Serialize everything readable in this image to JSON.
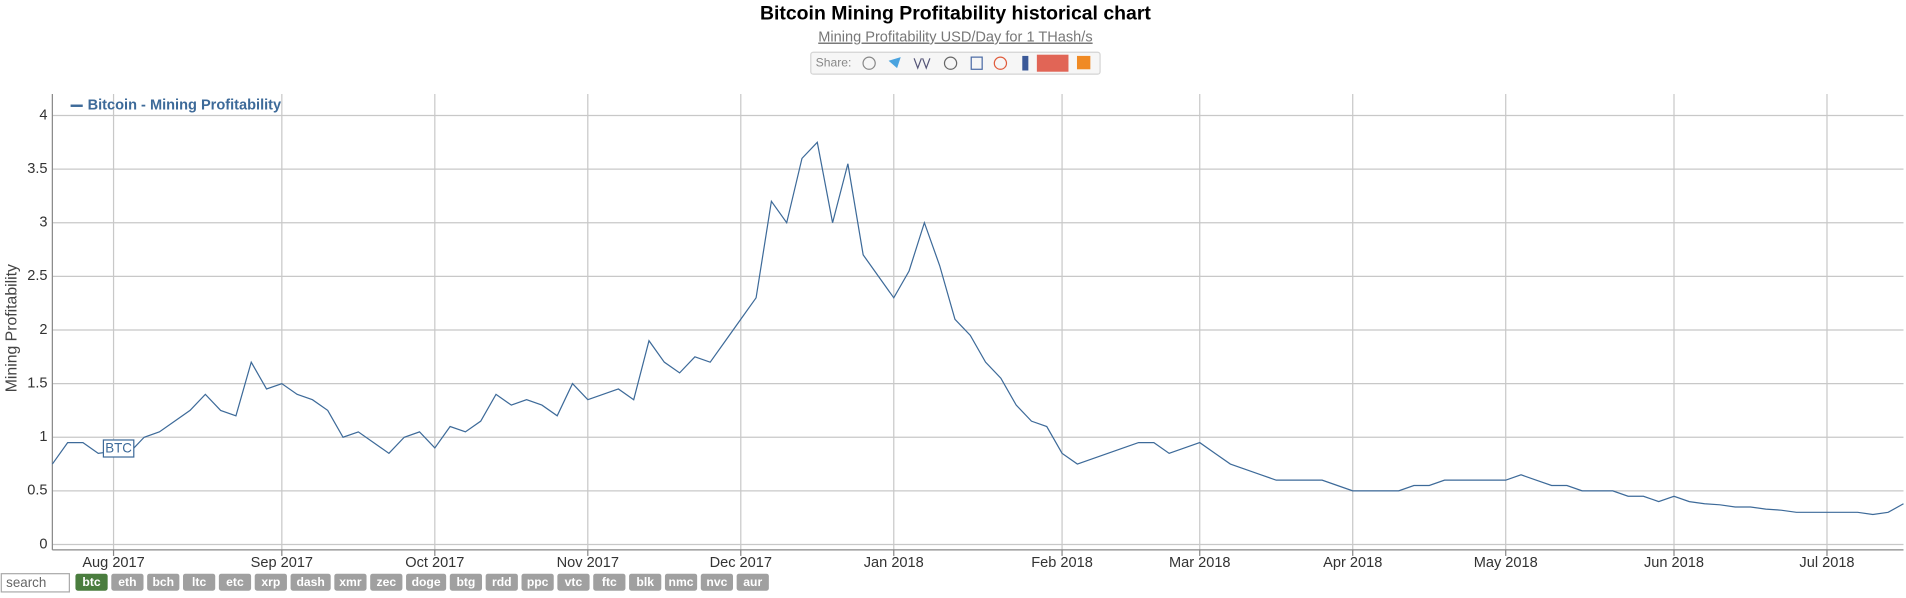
{
  "chart_data": {
    "type": "line",
    "title": "Bitcoin Mining Profitability historical chart",
    "subtitle": "Mining Profitability USD/Day for 1 THash/s",
    "ylabel": "Mining Profitability",
    "annotations": [
      "BTC"
    ],
    "categories": [
      null,
      null,
      null,
      null,
      "Aug 2017",
      null,
      null,
      null,
      null,
      null,
      null,
      null,
      null,
      null,
      null,
      "Sep 2017",
      null,
      null,
      null,
      null,
      null,
      null,
      null,
      null,
      null,
      "Oct 2017",
      null,
      null,
      null,
      null,
      null,
      null,
      null,
      null,
      null,
      "Nov 2017",
      null,
      null,
      null,
      null,
      null,
      null,
      null,
      null,
      null,
      "Dec 2017",
      null,
      null,
      null,
      null,
      null,
      null,
      null,
      null,
      null,
      "Jan 2018",
      null,
      null,
      null,
      null,
      null,
      null,
      null,
      null,
      null,
      null,
      "Feb 2018",
      null,
      null,
      null,
      null,
      null,
      null,
      null,
      null,
      "Mar 2018",
      null,
      null,
      null,
      null,
      null,
      null,
      null,
      null,
      null,
      "Apr 2018",
      null,
      null,
      null,
      null,
      null,
      null,
      null,
      null,
      null,
      "May 2018",
      null,
      null,
      null,
      null,
      null,
      null,
      null,
      null,
      null,
      null,
      "Jun 2018",
      null,
      null,
      null,
      null,
      null,
      null,
      null,
      null,
      null,
      "Jul 2018",
      null,
      null,
      null,
      null,
      null
    ],
    "series": [
      {
        "name": "Bitcoin - Mining Profitability",
        "color": "#3d6a99",
        "values": [
          0.75,
          0.95,
          0.95,
          0.85,
          0.87,
          0.85,
          1.0,
          1.05,
          1.15,
          1.25,
          1.4,
          1.25,
          1.2,
          1.7,
          1.45,
          1.5,
          1.4,
          1.35,
          1.25,
          1.0,
          1.05,
          0.95,
          0.85,
          1.0,
          1.05,
          0.9,
          1.1,
          1.05,
          1.15,
          1.4,
          1.3,
          1.35,
          1.3,
          1.2,
          1.5,
          1.35,
          1.4,
          1.45,
          1.35,
          1.9,
          1.7,
          1.6,
          1.75,
          1.7,
          1.9,
          2.1,
          2.3,
          3.2,
          3.0,
          3.6,
          3.75,
          3.0,
          3.55,
          2.7,
          2.5,
          2.3,
          2.55,
          3.0,
          2.6,
          2.1,
          1.95,
          1.7,
          1.55,
          1.3,
          1.15,
          1.1,
          0.85,
          0.75,
          0.8,
          0.85,
          0.9,
          0.95,
          0.95,
          0.85,
          0.9,
          0.95,
          0.85,
          0.75,
          0.7,
          0.65,
          0.6,
          0.6,
          0.6,
          0.6,
          0.55,
          0.5,
          0.5,
          0.5,
          0.5,
          0.55,
          0.55,
          0.6,
          0.6,
          0.6,
          0.6,
          0.6,
          0.65,
          0.6,
          0.55,
          0.55,
          0.5,
          0.5,
          0.5,
          0.45,
          0.45,
          0.4,
          0.45,
          0.4,
          0.38,
          0.37,
          0.35,
          0.35,
          0.33,
          0.32,
          0.3,
          0.3,
          0.3,
          0.3,
          0.3,
          0.28,
          0.3,
          0.38
        ]
      }
    ],
    "ylim": [
      -0.05,
      4.2
    ],
    "yticks": [
      0,
      0.5,
      1,
      1.5,
      2,
      2.5,
      3,
      3.5,
      4
    ],
    "grid": true,
    "legend": "top-left"
  },
  "share": {
    "label": "Share:"
  },
  "controls": {
    "search_placeholder": "search",
    "coins": [
      "btc",
      "eth",
      "bch",
      "ltc",
      "etc",
      "xrp",
      "dash",
      "xmr",
      "zec",
      "doge",
      "btg",
      "rdd",
      "ppc",
      "vtc",
      "ftc",
      "blk",
      "nmc",
      "nvc",
      "aur"
    ]
  }
}
